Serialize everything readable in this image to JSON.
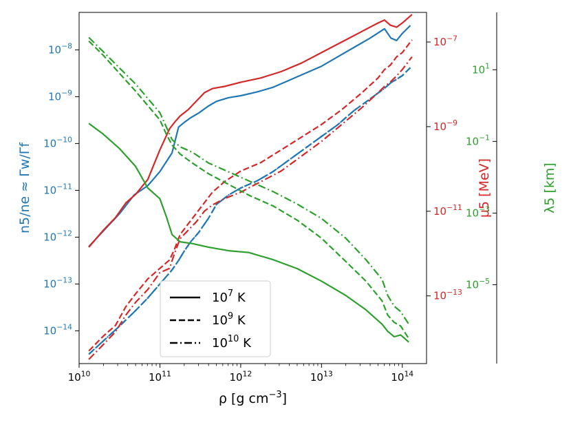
{
  "chart_data": {
    "type": "line",
    "x_axis": {
      "label_base": "ρ [g cm",
      "label_exp": "−3",
      "label_tail": "]",
      "scale": "log",
      "lim_log10": [
        10.0,
        14.3
      ],
      "ticks": [
        {
          "log": 10,
          "base": "10",
          "exp": "10"
        },
        {
          "log": 11,
          "base": "10",
          "exp": "11"
        },
        {
          "log": 12,
          "base": "10",
          "exp": "12"
        },
        {
          "log": 13,
          "base": "10",
          "exp": "13"
        },
        {
          "log": 14,
          "base": "10",
          "exp": "14"
        }
      ]
    },
    "left_axis": {
      "label": "n5/ne ≈ Γw/Γf",
      "color": "#1f77b4",
      "scale": "log",
      "lim_log10": [
        -14.7,
        -7.2
      ],
      "ticks": [
        {
          "log": -14,
          "base": "10",
          "exp": "−14"
        },
        {
          "log": -13,
          "base": "10",
          "exp": "−13"
        },
        {
          "log": -12,
          "base": "10",
          "exp": "−12"
        },
        {
          "log": -11,
          "base": "10",
          "exp": "−11"
        },
        {
          "log": -10,
          "base": "10",
          "exp": "−10"
        },
        {
          "log": -9,
          "base": "10",
          "exp": "−9"
        },
        {
          "log": -8,
          "base": "10",
          "exp": "−8"
        }
      ]
    },
    "mu_axis": {
      "label": "μ5 [MeV]",
      "color": "#d62728",
      "scale": "log",
      "lim_log10": [
        -14.6,
        -6.3
      ],
      "ticks": [
        {
          "log": -13,
          "base": "10",
          "exp": "−13"
        },
        {
          "log": -11,
          "base": "10",
          "exp": "−11"
        },
        {
          "log": -9,
          "base": "10",
          "exp": "−9"
        },
        {
          "log": -7,
          "base": "10",
          "exp": "−7"
        }
      ]
    },
    "lambda_axis": {
      "label": "λ5 [km]",
      "color": "#2ca02c",
      "scale": "log",
      "lim_log10": [
        -7.2,
        2.6
      ],
      "ticks": [
        {
          "log": -5,
          "base": "10",
          "exp": "−5"
        },
        {
          "log": -3,
          "base": "10",
          "exp": "−3"
        },
        {
          "log": -1,
          "base": "10",
          "exp": "−1"
        },
        {
          "log": 1,
          "base": "10",
          "exp": "1"
        }
      ]
    },
    "legend": {
      "position": "lower-left",
      "entries": [
        {
          "style": "solid",
          "base": "10",
          "exp": "7",
          "unit": " K"
        },
        {
          "style": "dashed",
          "base": "10",
          "exp": "9",
          "unit": " K"
        },
        {
          "style": "dashdot",
          "base": "10",
          "exp": "10",
          "unit": " K"
        }
      ]
    },
    "series": [
      {
        "name": "n5/ne 10^7 K",
        "axis": "left",
        "color": "#1f77b4",
        "style": "solid",
        "x_log": [
          10.12,
          10.5,
          10.68,
          10.85,
          11.0,
          11.15,
          11.23,
          11.3,
          11.38,
          11.48,
          11.6,
          11.7,
          11.85,
          12.0,
          12.2,
          12.4,
          12.6,
          12.8,
          13.0,
          13.2,
          13.4,
          13.6,
          13.78,
          13.86,
          13.93,
          14.0,
          14.1
        ],
        "y_log": [
          -12.2,
          -11.5,
          -11.1,
          -10.9,
          -10.6,
          -10.2,
          -9.65,
          -9.55,
          -9.45,
          -9.35,
          -9.2,
          -9.1,
          -9.02,
          -8.98,
          -8.9,
          -8.8,
          -8.65,
          -8.5,
          -8.35,
          -8.15,
          -7.95,
          -7.75,
          -7.55,
          -7.75,
          -7.8,
          -7.65,
          -7.48
        ]
      },
      {
        "name": "n5/ne 10^9 K",
        "axis": "left",
        "color": "#1f77b4",
        "style": "dashed",
        "x_log": [
          10.12,
          10.5,
          10.68,
          10.85,
          11.0,
          11.15,
          11.23,
          11.3,
          11.38,
          11.48,
          11.6,
          11.7,
          11.85,
          12.0,
          12.2,
          12.4,
          12.6,
          12.8,
          13.0,
          13.2,
          13.4,
          13.6,
          13.78,
          13.86,
          13.93,
          14.0,
          14.1
        ],
        "y_log": [
          -14.5,
          -13.9,
          -13.6,
          -13.3,
          -13.0,
          -12.7,
          -12.5,
          -12.3,
          -12.1,
          -11.9,
          -11.6,
          -11.3,
          -11.1,
          -10.95,
          -10.8,
          -10.6,
          -10.35,
          -10.1,
          -9.85,
          -9.6,
          -9.3,
          -9.05,
          -8.82,
          -8.7,
          -8.63,
          -8.55,
          -8.38
        ]
      },
      {
        "name": "n5/ne 10^10 K",
        "axis": "left",
        "color": "#1f77b4",
        "style": "dashdot",
        "x_log": [
          10.12,
          10.5,
          10.68,
          10.85,
          11.0,
          11.15,
          11.23,
          11.3,
          11.38,
          11.48,
          11.6,
          11.7,
          11.85,
          12.0,
          12.2,
          12.4,
          12.6,
          12.8,
          13.0,
          13.2,
          13.4,
          13.6,
          13.78,
          13.86,
          13.93,
          14.0,
          14.1
        ],
        "y_log": [
          -14.5,
          -13.9,
          -13.6,
          -13.3,
          -13.0,
          -12.7,
          -12.5,
          -12.3,
          -12.1,
          -11.9,
          -11.6,
          -11.3,
          -11.1,
          -10.95,
          -10.8,
          -10.6,
          -10.35,
          -10.1,
          -9.85,
          -9.6,
          -9.3,
          -9.05,
          -8.82,
          -8.7,
          -8.63,
          -8.55,
          -8.38
        ]
      },
      {
        "name": "μ5 10^7 K",
        "axis": "mu",
        "color": "#d62728",
        "style": "solid",
        "x_log": [
          10.12,
          10.3,
          10.45,
          10.58,
          10.7,
          10.85,
          11.0,
          11.12,
          11.18,
          11.25,
          11.35,
          11.45,
          11.55,
          11.65,
          11.8,
          12.0,
          12.25,
          12.5,
          12.75,
          13.0,
          13.25,
          13.5,
          13.7,
          13.78,
          13.85,
          13.93,
          14.0,
          14.12
        ],
        "y_log": [
          -11.85,
          -11.45,
          -11.15,
          -10.8,
          -10.6,
          -10.25,
          -9.55,
          -9.05,
          -8.9,
          -8.75,
          -8.6,
          -8.4,
          -8.2,
          -8.1,
          -8.05,
          -7.95,
          -7.85,
          -7.7,
          -7.5,
          -7.25,
          -7.0,
          -6.75,
          -6.55,
          -6.48,
          -6.6,
          -6.65,
          -6.55,
          -6.35
        ]
      },
      {
        "name": "μ5 10^9 K",
        "axis": "mu",
        "color": "#d62728",
        "style": "dashed",
        "x_log": [
          10.12,
          10.3,
          10.45,
          10.58,
          10.7,
          10.85,
          11.0,
          11.12,
          11.18,
          11.25,
          11.35,
          11.45,
          11.55,
          11.65,
          11.8,
          12.0,
          12.25,
          12.5,
          12.75,
          13.0,
          13.25,
          13.5,
          13.7,
          13.78,
          13.85,
          13.93,
          14.0,
          14.12
        ],
        "y_log": [
          -14.3,
          -13.95,
          -13.7,
          -13.25,
          -12.95,
          -12.6,
          -12.35,
          -12.15,
          -11.9,
          -11.55,
          -11.3,
          -11.05,
          -10.8,
          -10.55,
          -10.3,
          -10.05,
          -9.85,
          -9.55,
          -9.25,
          -8.95,
          -8.6,
          -8.2,
          -7.85,
          -7.65,
          -7.55,
          -7.35,
          -7.25,
          -6.95
        ]
      },
      {
        "name": "μ5 10^10 K",
        "axis": "mu",
        "color": "#d62728",
        "style": "dashdot",
        "x_log": [
          10.12,
          10.3,
          10.45,
          10.58,
          10.7,
          10.85,
          11.0,
          11.12,
          11.18,
          11.25,
          11.35,
          11.45,
          11.55,
          11.65,
          11.8,
          12.0,
          12.25,
          12.5,
          12.75,
          13.0,
          13.25,
          13.5,
          13.7,
          13.78,
          13.85,
          13.93,
          14.0,
          14.12
        ],
        "y_log": [
          -14.5,
          -14.15,
          -13.85,
          -13.45,
          -13.15,
          -12.85,
          -12.45,
          -12.35,
          -12.0,
          -11.65,
          -11.45,
          -11.25,
          -11.0,
          -10.85,
          -10.7,
          -10.55,
          -10.3,
          -10.05,
          -9.7,
          -9.35,
          -8.95,
          -8.55,
          -8.2,
          -8.05,
          -7.95,
          -7.8,
          -7.65,
          -7.35
        ]
      },
      {
        "name": "λ5 10^7 K",
        "axis": "lambda",
        "color": "#2ca02c",
        "style": "solid",
        "x_log": [
          10.12,
          10.3,
          10.5,
          10.7,
          10.85,
          11.0,
          11.08,
          11.15,
          11.25,
          11.4,
          11.6,
          11.85,
          12.1,
          12.4,
          12.7,
          13.0,
          13.3,
          13.55,
          13.75,
          13.82,
          13.9,
          13.98,
          14.08
        ],
        "y_log": [
          -0.5,
          -0.8,
          -1.2,
          -1.7,
          -2.3,
          -2.6,
          -3.1,
          -3.6,
          -3.8,
          -3.85,
          -3.95,
          -4.05,
          -4.1,
          -4.3,
          -4.55,
          -4.9,
          -5.3,
          -5.7,
          -6.1,
          -6.3,
          -6.45,
          -6.4,
          -6.6
        ]
      },
      {
        "name": "λ5 10^9 K",
        "axis": "lambda",
        "color": "#2ca02c",
        "style": "dashed",
        "x_log": [
          10.12,
          10.3,
          10.5,
          10.7,
          10.85,
          11.0,
          11.08,
          11.15,
          11.25,
          11.4,
          11.6,
          11.85,
          12.1,
          12.4,
          12.7,
          13.0,
          13.3,
          13.55,
          13.75,
          13.82,
          13.9,
          13.98,
          14.08
        ],
        "y_log": [
          1.8,
          1.4,
          0.9,
          0.4,
          0.0,
          -0.4,
          -0.8,
          -1.1,
          -1.35,
          -1.6,
          -1.9,
          -2.2,
          -2.5,
          -2.8,
          -3.2,
          -3.7,
          -4.35,
          -4.9,
          -5.45,
          -5.85,
          -6.05,
          -6.15,
          -6.5
        ]
      },
      {
        "name": "λ5 10^10 K",
        "axis": "lambda",
        "color": "#2ca02c",
        "style": "dashdot",
        "x_log": [
          10.12,
          10.3,
          10.5,
          10.7,
          10.85,
          11.0,
          11.08,
          11.15,
          11.25,
          11.4,
          11.6,
          11.85,
          12.1,
          12.4,
          12.7,
          13.0,
          13.3,
          13.55,
          13.75,
          13.82,
          13.9,
          13.98,
          14.08
        ],
        "y_log": [
          1.9,
          1.5,
          1.05,
          0.6,
          0.2,
          -0.2,
          -0.6,
          -0.95,
          -1.15,
          -1.3,
          -1.6,
          -1.85,
          -2.1,
          -2.4,
          -2.75,
          -3.15,
          -3.7,
          -4.3,
          -4.85,
          -5.3,
          -5.6,
          -5.75,
          -6.1
        ]
      }
    ]
  }
}
